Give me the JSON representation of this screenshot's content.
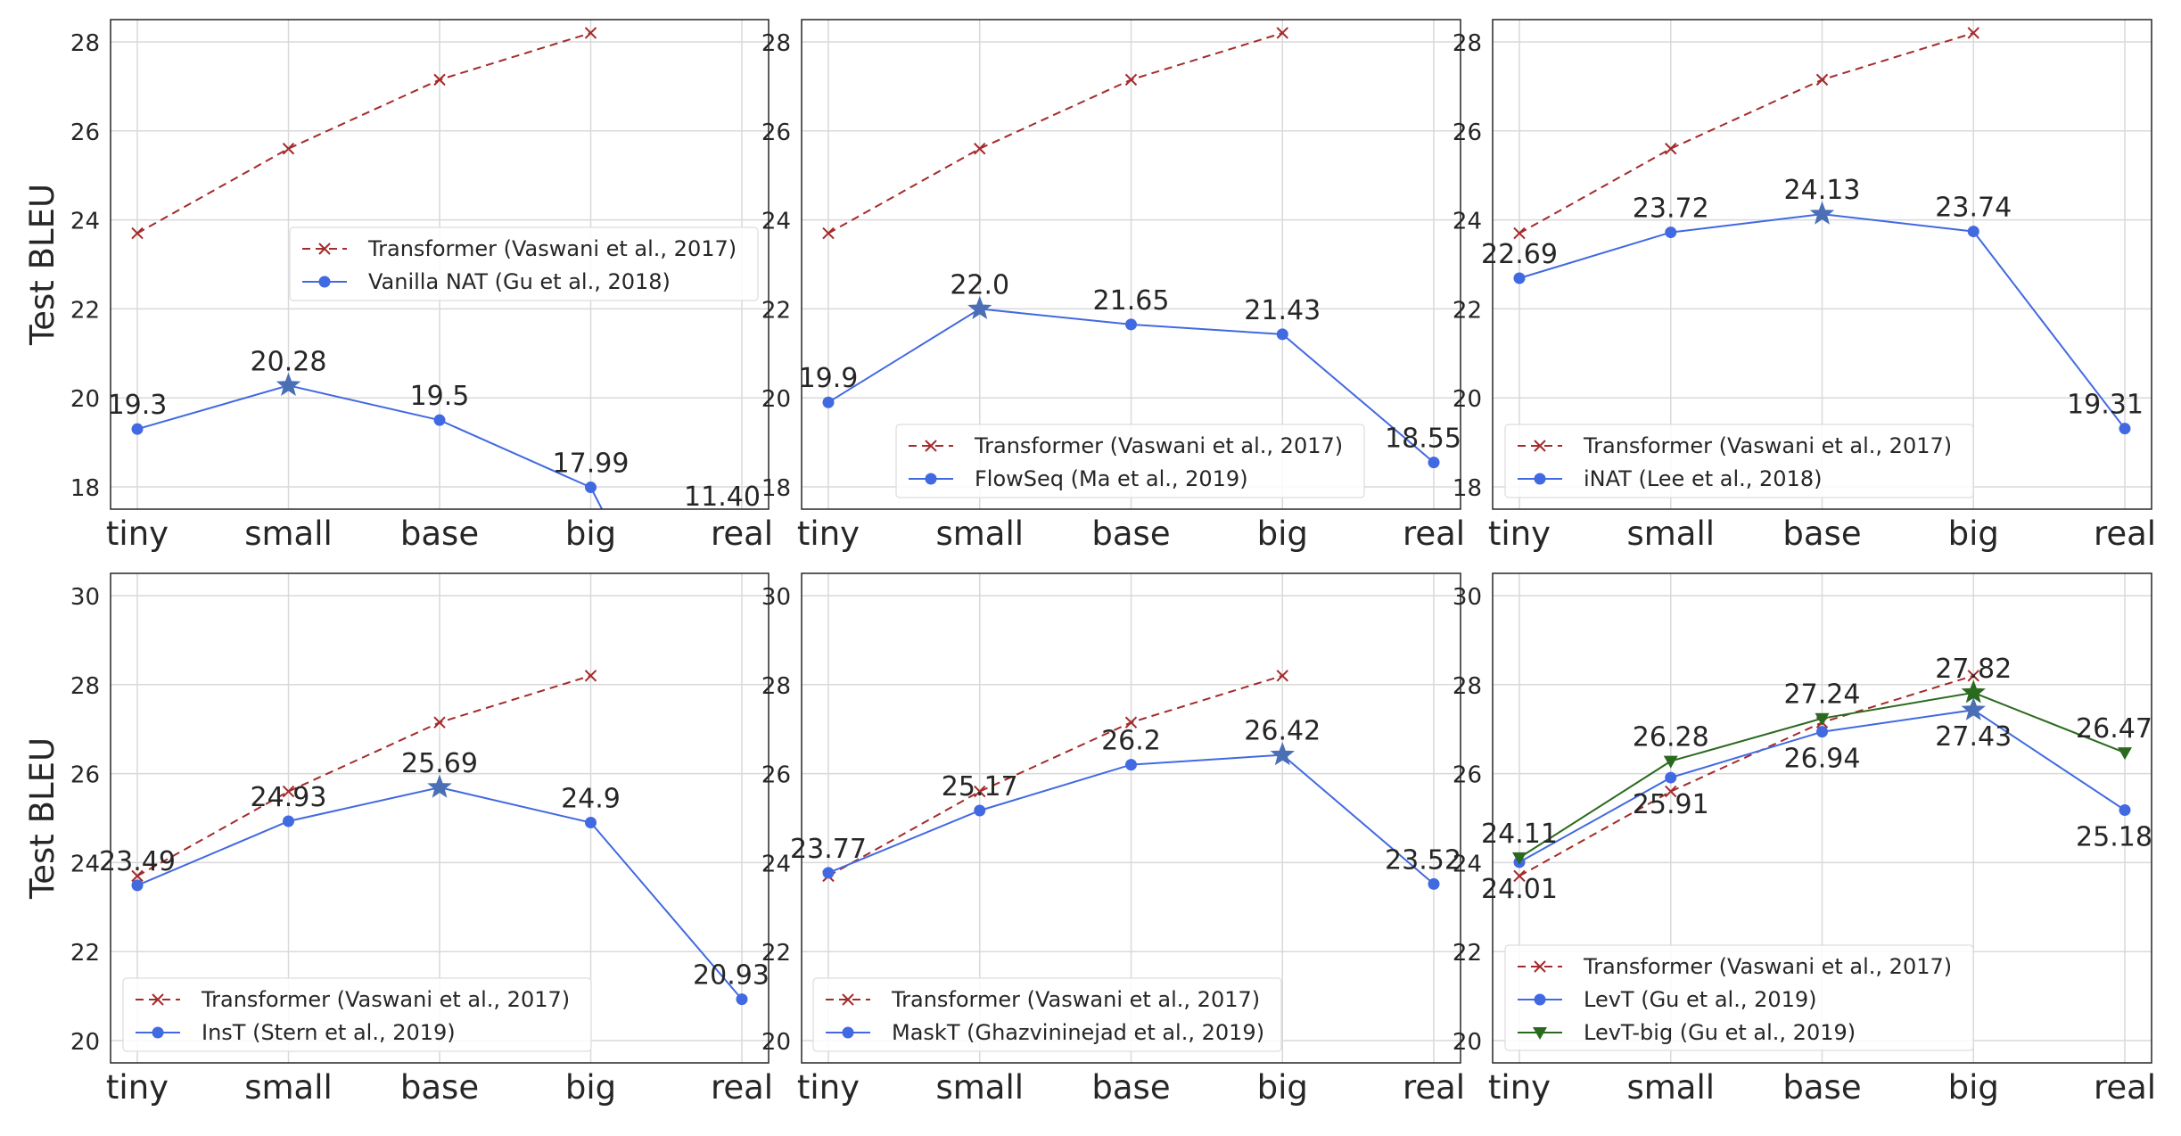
{
  "chart_data": [
    {
      "type": "line",
      "categories": [
        "tiny",
        "small",
        "base",
        "big",
        "real"
      ],
      "ylabel": "Test BLEU",
      "ylim": [
        17.5,
        28.5
      ],
      "yticks": [
        18,
        20,
        22,
        24,
        26,
        28
      ],
      "grid": true,
      "legend": "center-right",
      "series": [
        {
          "name": "Transformer (Vaswani et al., 2017)",
          "values": [
            23.7,
            25.6,
            27.15,
            28.2,
            null
          ],
          "color": "#a52a2a",
          "dash": true,
          "marker": "x"
        },
        {
          "name": "Vanilla NAT (Gu et al., 2018)",
          "values": [
            19.3,
            20.28,
            19.5,
            17.99,
            11.4
          ],
          "color": "#4169e1",
          "marker": "o",
          "star": 1,
          "labels": [
            "19.3",
            "20.28",
            "19.5",
            "17.99",
            "11.40"
          ]
        }
      ]
    },
    {
      "type": "line",
      "categories": [
        "tiny",
        "small",
        "base",
        "big",
        "real"
      ],
      "ylabel": "",
      "ylim": [
        17.5,
        28.5
      ],
      "yticks": [
        18,
        20,
        22,
        24,
        26,
        28
      ],
      "grid": true,
      "legend": "lower-center",
      "series": [
        {
          "name": "Transformer (Vaswani et al., 2017)",
          "values": [
            23.7,
            25.6,
            27.15,
            28.2,
            null
          ],
          "color": "#a52a2a",
          "dash": true,
          "marker": "x"
        },
        {
          "name": "FlowSeq (Ma et al., 2019)",
          "values": [
            19.9,
            22.0,
            21.65,
            21.43,
            18.55
          ],
          "color": "#4169e1",
          "marker": "o",
          "star": 1,
          "labels": [
            "19.9",
            "22.0",
            "21.65",
            "21.43",
            "18.55"
          ]
        }
      ]
    },
    {
      "type": "line",
      "categories": [
        "tiny",
        "small",
        "base",
        "big",
        "real"
      ],
      "ylabel": "",
      "ylim": [
        17.5,
        28.5
      ],
      "yticks": [
        18,
        20,
        22,
        24,
        26,
        28
      ],
      "grid": true,
      "legend": "lower-left",
      "series": [
        {
          "name": "Transformer (Vaswani et al., 2017)",
          "values": [
            23.7,
            25.6,
            27.15,
            28.2,
            null
          ],
          "color": "#a52a2a",
          "dash": true,
          "marker": "x"
        },
        {
          "name": "iNAT (Lee et al., 2018)",
          "values": [
            22.69,
            23.72,
            24.13,
            23.74,
            19.31
          ],
          "color": "#4169e1",
          "marker": "o",
          "star": 2,
          "labels": [
            "22.69",
            "23.72",
            "24.13",
            "23.74",
            "19.31"
          ]
        }
      ]
    },
    {
      "type": "line",
      "categories": [
        "tiny",
        "small",
        "base",
        "big",
        "real"
      ],
      "ylabel": "Test BLEU",
      "ylim": [
        19.5,
        30.5
      ],
      "yticks": [
        20,
        22,
        24,
        26,
        28,
        30
      ],
      "grid": true,
      "legend": "lower-left",
      "series": [
        {
          "name": "Transformer (Vaswani et al., 2017)",
          "values": [
            23.7,
            25.6,
            27.15,
            28.2,
            null
          ],
          "color": "#a52a2a",
          "dash": true,
          "marker": "x"
        },
        {
          "name": "InsT (Stern et al., 2019)",
          "values": [
            23.49,
            24.93,
            25.69,
            24.9,
            20.93
          ],
          "color": "#4169e1",
          "marker": "o",
          "star": 2,
          "labels": [
            "23.49",
            "24.93",
            "25.69",
            "24.9",
            "20.93"
          ]
        }
      ]
    },
    {
      "type": "line",
      "categories": [
        "tiny",
        "small",
        "base",
        "big",
        "real"
      ],
      "ylabel": "",
      "ylim": [
        19.5,
        30.5
      ],
      "yticks": [
        20,
        22,
        24,
        26,
        28,
        30
      ],
      "grid": true,
      "legend": "lower-left",
      "series": [
        {
          "name": "Transformer (Vaswani et al., 2017)",
          "values": [
            23.7,
            25.6,
            27.15,
            28.2,
            null
          ],
          "color": "#a52a2a",
          "dash": true,
          "marker": "x"
        },
        {
          "name": "MaskT (Ghazvininejad et al., 2019)",
          "values": [
            23.77,
            25.17,
            26.2,
            26.42,
            23.52
          ],
          "color": "#4169e1",
          "marker": "o",
          "star": 3,
          "labels": [
            "23.77",
            "25.17",
            "26.2",
            "26.42",
            "23.52"
          ]
        }
      ]
    },
    {
      "type": "line",
      "categories": [
        "tiny",
        "small",
        "base",
        "big",
        "real"
      ],
      "ylabel": "",
      "ylim": [
        19.5,
        30.5
      ],
      "yticks": [
        20,
        22,
        24,
        26,
        28,
        30
      ],
      "grid": true,
      "legend": "lower-left",
      "series": [
        {
          "name": "Transformer (Vaswani et al., 2017)",
          "values": [
            23.7,
            25.6,
            27.15,
            28.2,
            null
          ],
          "color": "#a52a2a",
          "dash": true,
          "marker": "x"
        },
        {
          "name": "LevT (Gu et al., 2019)",
          "values": [
            24.01,
            25.91,
            26.94,
            27.43,
            25.18
          ],
          "color": "#4169e1",
          "marker": "o",
          "star": 3,
          "labels": [
            "24.01",
            "25.91",
            "26.94",
            "27.43",
            "25.18"
          ],
          "labelPos": "below"
        },
        {
          "name": "LevT-big (Gu et al., 2019)",
          "values": [
            24.11,
            26.28,
            27.24,
            27.82,
            26.47
          ],
          "color": "#2a6a1e",
          "marker": "v",
          "star": 3,
          "labels": [
            "24.11",
            "26.28",
            "27.24",
            "27.82",
            "26.47"
          ]
        }
      ]
    }
  ]
}
